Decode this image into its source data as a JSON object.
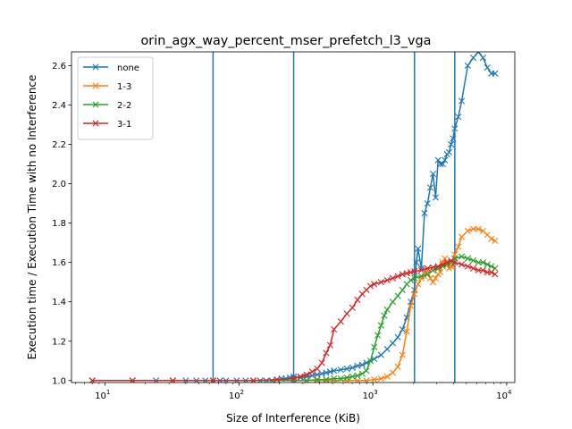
{
  "chart_data": {
    "type": "line",
    "title": "orin_agx_way_percent_mser_prefetch_l3_vga",
    "xlabel": "Size of Interference (KiB)",
    "ylabel": "Execution time / Execution Time with no Interference",
    "xscale": "log",
    "xlim": [
      5.6,
      11500
    ],
    "ylim": [
      0.99,
      2.67
    ],
    "x_ticks": [
      {
        "value": 10,
        "base": "10",
        "exp": "1"
      },
      {
        "value": 100,
        "base": "10",
        "exp": "2"
      },
      {
        "value": 1000,
        "base": "10",
        "exp": "3"
      },
      {
        "value": 10000,
        "base": "10",
        "exp": "4"
      }
    ],
    "y_ticks": [
      "1.0",
      "1.2",
      "1.4",
      "1.6",
      "1.8",
      "2.0",
      "2.2",
      "2.4",
      "2.6"
    ],
    "vertical_lines": [
      64,
      256,
      2048,
      4096
    ],
    "vertical_line_color": "#1f77b4",
    "legend_position": "upper left",
    "marker": "x",
    "series": [
      {
        "name": "none",
        "color": "#1f77b4",
        "points": [
          [
            8,
            1.0
          ],
          [
            16,
            1.0
          ],
          [
            24,
            1.0
          ],
          [
            32,
            1.0
          ],
          [
            40,
            1.0
          ],
          [
            48,
            1.0
          ],
          [
            56,
            1.0
          ],
          [
            64,
            1.0
          ],
          [
            72,
            1.0
          ],
          [
            80,
            1.0
          ],
          [
            96,
            1.0
          ],
          [
            112,
            1.0
          ],
          [
            128,
            1.0
          ],
          [
            144,
            1.0
          ],
          [
            160,
            1.0
          ],
          [
            176,
            1.0
          ],
          [
            192,
            1.005
          ],
          [
            208,
            1.01
          ],
          [
            224,
            1.01
          ],
          [
            240,
            1.015
          ],
          [
            256,
            1.02
          ],
          [
            288,
            1.015
          ],
          [
            320,
            1.02
          ],
          [
            352,
            1.025
          ],
          [
            384,
            1.03
          ],
          [
            416,
            1.035
          ],
          [
            448,
            1.04
          ],
          [
            480,
            1.045
          ],
          [
            512,
            1.05
          ],
          [
            576,
            1.055
          ],
          [
            640,
            1.06
          ],
          [
            704,
            1.065
          ],
          [
            768,
            1.075
          ],
          [
            832,
            1.08
          ],
          [
            896,
            1.09
          ],
          [
            1024,
            1.11
          ],
          [
            1152,
            1.13
          ],
          [
            1280,
            1.16
          ],
          [
            1408,
            1.19
          ],
          [
            1536,
            1.22
          ],
          [
            1664,
            1.26
          ],
          [
            1792,
            1.32
          ],
          [
            1920,
            1.4
          ],
          [
            2048,
            1.46
          ],
          [
            2112,
            1.6
          ],
          [
            2176,
            1.67
          ],
          [
            2304,
            1.57
          ],
          [
            2432,
            1.85
          ],
          [
            2560,
            1.9
          ],
          [
            2688,
            1.98
          ],
          [
            2816,
            2.05
          ],
          [
            2944,
            1.93
          ],
          [
            3072,
            2.12
          ],
          [
            3200,
            2.1
          ],
          [
            3328,
            2.1
          ],
          [
            3456,
            2.12
          ],
          [
            3584,
            2.15
          ],
          [
            3712,
            2.16
          ],
          [
            3840,
            2.2
          ],
          [
            3968,
            2.23
          ],
          [
            4096,
            2.28
          ],
          [
            4352,
            2.34
          ],
          [
            4608,
            2.42
          ],
          [
            5120,
            2.6
          ],
          [
            5632,
            2.64
          ],
          [
            6144,
            2.67
          ],
          [
            6656,
            2.64
          ],
          [
            7168,
            2.59
          ],
          [
            7680,
            2.56
          ],
          [
            8192,
            2.56
          ]
        ]
      },
      {
        "name": "1-3",
        "color": "#ff7f0e",
        "points": [
          [
            8,
            1.0
          ],
          [
            16,
            1.0
          ],
          [
            32,
            1.0
          ],
          [
            64,
            1.0
          ],
          [
            128,
            1.0
          ],
          [
            256,
            1.0
          ],
          [
            320,
            1.0
          ],
          [
            384,
            1.0
          ],
          [
            448,
            1.0
          ],
          [
            512,
            1.0
          ],
          [
            640,
            1.0
          ],
          [
            768,
            1.0
          ],
          [
            896,
            1.0
          ],
          [
            1024,
            1.005
          ],
          [
            1152,
            1.01
          ],
          [
            1280,
            1.02
          ],
          [
            1408,
            1.04
          ],
          [
            1536,
            1.07
          ],
          [
            1664,
            1.13
          ],
          [
            1792,
            1.25
          ],
          [
            1920,
            1.38
          ],
          [
            2048,
            1.44
          ],
          [
            2176,
            1.49
          ],
          [
            2304,
            1.52
          ],
          [
            2432,
            1.53
          ],
          [
            2560,
            1.56
          ],
          [
            2688,
            1.52
          ],
          [
            2816,
            1.5
          ],
          [
            2944,
            1.52
          ],
          [
            3072,
            1.54
          ],
          [
            3200,
            1.55
          ],
          [
            3328,
            1.6
          ],
          [
            3456,
            1.62
          ],
          [
            3584,
            1.6
          ],
          [
            3712,
            1.57
          ],
          [
            3840,
            1.58
          ],
          [
            3968,
            1.58
          ],
          [
            4096,
            1.64
          ],
          [
            4352,
            1.68
          ],
          [
            4608,
            1.73
          ],
          [
            5120,
            1.76
          ],
          [
            5632,
            1.77
          ],
          [
            6144,
            1.77
          ],
          [
            6656,
            1.76
          ],
          [
            7168,
            1.74
          ],
          [
            7680,
            1.72
          ],
          [
            8192,
            1.71
          ]
        ]
      },
      {
        "name": "2-2",
        "color": "#2ca02c",
        "points": [
          [
            8,
            1.0
          ],
          [
            16,
            1.0
          ],
          [
            32,
            1.0
          ],
          [
            64,
            1.0
          ],
          [
            128,
            1.0
          ],
          [
            256,
            1.0
          ],
          [
            320,
            1.0
          ],
          [
            384,
            1.005
          ],
          [
            448,
            1.005
          ],
          [
            512,
            1.01
          ],
          [
            576,
            1.01
          ],
          [
            640,
            1.015
          ],
          [
            704,
            1.02
          ],
          [
            768,
            1.025
          ],
          [
            832,
            1.035
          ],
          [
            896,
            1.05
          ],
          [
            960,
            1.1
          ],
          [
            1024,
            1.17
          ],
          [
            1088,
            1.23
          ],
          [
            1152,
            1.28
          ],
          [
            1216,
            1.33
          ],
          [
            1280,
            1.36
          ],
          [
            1408,
            1.4
          ],
          [
            1536,
            1.43
          ],
          [
            1664,
            1.46
          ],
          [
            1792,
            1.49
          ],
          [
            1920,
            1.51
          ],
          [
            2048,
            1.52
          ],
          [
            2304,
            1.53
          ],
          [
            2560,
            1.54
          ],
          [
            2816,
            1.56
          ],
          [
            3072,
            1.57
          ],
          [
            3328,
            1.58
          ],
          [
            3584,
            1.59
          ],
          [
            3840,
            1.6
          ],
          [
            4096,
            1.62
          ],
          [
            4608,
            1.63
          ],
          [
            5120,
            1.62
          ],
          [
            5632,
            1.61
          ],
          [
            6144,
            1.6
          ],
          [
            6656,
            1.6
          ],
          [
            7168,
            1.59
          ],
          [
            7680,
            1.58
          ],
          [
            8192,
            1.57
          ]
        ]
      },
      {
        "name": "3-1",
        "color": "#d62728",
        "points": [
          [
            8,
            1.0
          ],
          [
            16,
            1.0
          ],
          [
            32,
            1.0
          ],
          [
            64,
            1.0
          ],
          [
            128,
            1.0
          ],
          [
            192,
            1.005
          ],
          [
            256,
            1.01
          ],
          [
            288,
            1.02
          ],
          [
            320,
            1.03
          ],
          [
            352,
            1.045
          ],
          [
            384,
            1.06
          ],
          [
            416,
            1.09
          ],
          [
            448,
            1.14
          ],
          [
            480,
            1.18
          ],
          [
            512,
            1.26
          ],
          [
            576,
            1.3
          ],
          [
            640,
            1.34
          ],
          [
            704,
            1.37
          ],
          [
            768,
            1.41
          ],
          [
            832,
            1.44
          ],
          [
            896,
            1.46
          ],
          [
            960,
            1.48
          ],
          [
            1024,
            1.49
          ],
          [
            1152,
            1.5
          ],
          [
            1280,
            1.51
          ],
          [
            1408,
            1.52
          ],
          [
            1536,
            1.53
          ],
          [
            1664,
            1.54
          ],
          [
            1792,
            1.545
          ],
          [
            1920,
            1.55
          ],
          [
            2048,
            1.555
          ],
          [
            2304,
            1.56
          ],
          [
            2560,
            1.57
          ],
          [
            2816,
            1.575
          ],
          [
            3072,
            1.58
          ],
          [
            3328,
            1.59
          ],
          [
            3584,
            1.6
          ],
          [
            3840,
            1.61
          ],
          [
            4096,
            1.6
          ],
          [
            4608,
            1.59
          ],
          [
            5120,
            1.58
          ],
          [
            5632,
            1.57
          ],
          [
            6144,
            1.56
          ],
          [
            6656,
            1.56
          ],
          [
            7168,
            1.55
          ],
          [
            7680,
            1.55
          ],
          [
            8192,
            1.54
          ]
        ]
      }
    ]
  }
}
